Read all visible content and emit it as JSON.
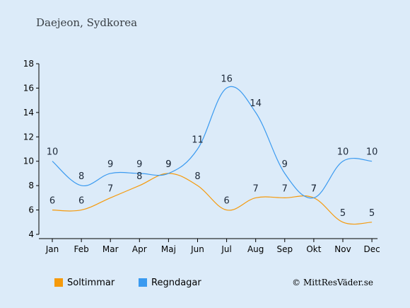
{
  "chart_data": {
    "type": "line",
    "title": "Daejeon, Sydkorea",
    "categories": [
      "Jan",
      "Feb",
      "Mar",
      "Apr",
      "Maj",
      "Jun",
      "Jul",
      "Aug",
      "Sep",
      "Okt",
      "Nov",
      "Dec"
    ],
    "series": [
      {
        "name": "Soltimmar",
        "color": "#f59a0c",
        "values": [
          6,
          6,
          7,
          8,
          9,
          8,
          6,
          7,
          7,
          7,
          5,
          5
        ]
      },
      {
        "name": "Regndagar",
        "color": "#3a9af0",
        "values": [
          10,
          8,
          9,
          9,
          9,
          11,
          16,
          14,
          9,
          7,
          10,
          10
        ]
      }
    ],
    "yticks": [
      4,
      6,
      8,
      10,
      12,
      14,
      16,
      18
    ],
    "ylim": [
      4,
      18
    ],
    "grid": false,
    "legend": "bottom",
    "xlabel": "",
    "ylabel": ""
  },
  "copyright": "© MittResVäder.se"
}
